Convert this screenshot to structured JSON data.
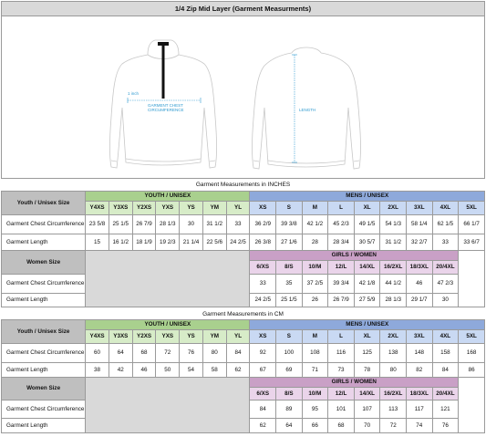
{
  "title": "1/4 Zip Mid Layer (Garment Measurments)",
  "drawing": {
    "chest_label_line1": "GARMENT CHEST",
    "chest_label_line2": "CIRCUMFERENCE",
    "length_label": "LENGTH",
    "small_label": "1 inch",
    "dimension_color": "#2e9ad0"
  },
  "inches": {
    "section_title": "Garment Measurements in INCHES",
    "youth_header": "YOUTH / UNISEX",
    "mens_header": "MENS / UNISEX",
    "girls_header": "GIRLS / WOMEN",
    "youth_row_label": "Youth / Unisex Size",
    "women_row_label": "Women Size",
    "youth_sizes": [
      "Y4XS",
      "Y3XS",
      "Y2XS",
      "YXS",
      "YS",
      "YM",
      "YL"
    ],
    "mens_sizes": [
      "XS",
      "S",
      "M",
      "L",
      "XL",
      "2XL",
      "3XL",
      "4XL",
      "5XL"
    ],
    "girls_sizes": [
      "6/XS",
      "8/S",
      "10/M",
      "12/L",
      "14/XL",
      "16/2XL",
      "18/3XL",
      "20/4XL"
    ],
    "chest_label": "Garment Chest Circumference",
    "length_label": "Garment Length",
    "chest": [
      "23 5/8",
      "25 1/5",
      "26 7/9",
      "28 1/3",
      "30",
      "31 1/2",
      "33",
      "36 2/9",
      "39 3/8",
      "42 1/2",
      "45 2/3",
      "49 1/5",
      "54 1/3",
      "58 1/4",
      "62 1/5",
      "66 1/7"
    ],
    "length": [
      "15",
      "16 1/2",
      "18 1/9",
      "19 2/3",
      "21 1/4",
      "22 5/6",
      "24 2/5",
      "26 3/8",
      "27 1/6",
      "28",
      "28 3/4",
      "30 5/7",
      "31 1/2",
      "32 2/7",
      "33",
      "33 6/7"
    ],
    "women_chest": [
      "33",
      "35",
      "37 2/5",
      "39 3/4",
      "42 1/8",
      "44 1/2",
      "46",
      "47 2/3"
    ],
    "women_length": [
      "24 2/5",
      "25 1/5",
      "26",
      "26 7/9",
      "27 5/9",
      "28 1/3",
      "29 1/7",
      "30"
    ]
  },
  "cm": {
    "section_title": "Garment Measurements in CM",
    "youth_header": "YOUTH / UNISEX",
    "mens_header": "MENS / UNISEX",
    "girls_header": "GIRLS / WOMEN",
    "youth_row_label": "Youth / Unisex Size",
    "women_row_label": "Women Size",
    "youth_sizes": [
      "Y4XS",
      "Y3XS",
      "Y2XS",
      "YXS",
      "YS",
      "YM",
      "YL"
    ],
    "mens_sizes": [
      "XS",
      "S",
      "M",
      "L",
      "XL",
      "2XL",
      "3XL",
      "4XL",
      "5XL"
    ],
    "girls_sizes": [
      "6/XS",
      "8/S",
      "10/M",
      "12/L",
      "14/XL",
      "16/2XL",
      "18/3XL",
      "20/4XL"
    ],
    "chest_label": "Garment Chest Circumference",
    "length_label": "Garment Length",
    "chest": [
      "60",
      "64",
      "68",
      "72",
      "76",
      "80",
      "84",
      "92",
      "100",
      "108",
      "116",
      "125",
      "138",
      "148",
      "158",
      "168"
    ],
    "length": [
      "38",
      "42",
      "46",
      "50",
      "54",
      "58",
      "62",
      "67",
      "69",
      "71",
      "73",
      "78",
      "80",
      "82",
      "84",
      "86"
    ],
    "women_chest": [
      "84",
      "89",
      "95",
      "101",
      "107",
      "113",
      "117",
      "121"
    ],
    "women_length": [
      "62",
      "64",
      "66",
      "68",
      "70",
      "72",
      "74",
      "76"
    ]
  }
}
